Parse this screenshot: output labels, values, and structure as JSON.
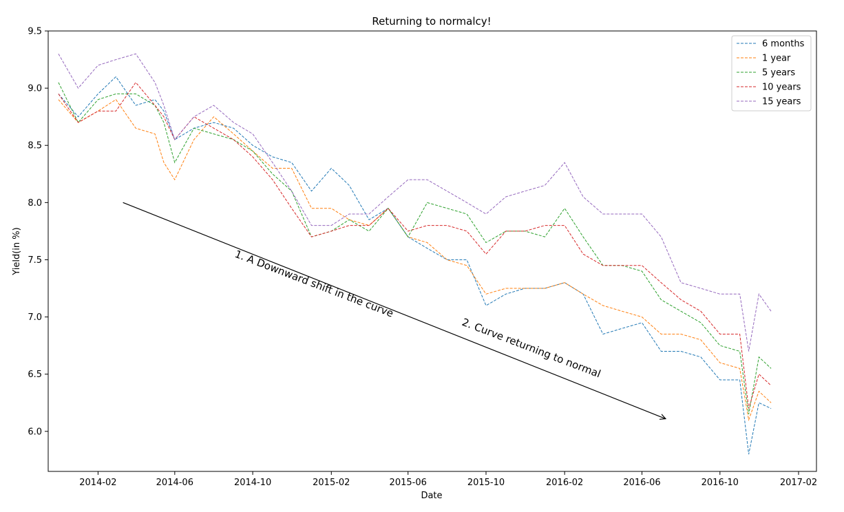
{
  "chart_data": {
    "type": "line",
    "title": "Returning to normalcy!",
    "xlabel": "Date",
    "ylabel": "Yield(in %)",
    "x_range": [
      "2013-11-15",
      "2017-03-01"
    ],
    "ylim": [
      5.65,
      9.5
    ],
    "x_ticks": [
      "2014-02",
      "2014-06",
      "2014-10",
      "2015-02",
      "2015-06",
      "2015-10",
      "2016-02",
      "2016-06",
      "2016-10",
      "2017-02"
    ],
    "y_ticks": [
      "6.0",
      "6.5",
      "7.0",
      "7.5",
      "8.0",
      "8.5",
      "9.0",
      "9.5"
    ],
    "grid": false,
    "legend_position": "top-right",
    "line_style": "dashed",
    "x": [
      "2013-12-01",
      "2014-01-01",
      "2014-02-01",
      "2014-03-01",
      "2014-04-01",
      "2014-05-01",
      "2014-05-15",
      "2014-06-01",
      "2014-07-01",
      "2014-08-01",
      "2014-09-01",
      "2014-10-01",
      "2014-11-01",
      "2014-12-01",
      "2015-01-01",
      "2015-02-01",
      "2015-03-01",
      "2015-04-01",
      "2015-05-01",
      "2015-06-01",
      "2015-07-01",
      "2015-08-01",
      "2015-09-01",
      "2015-10-01",
      "2015-11-01",
      "2015-12-01",
      "2016-01-01",
      "2016-02-01",
      "2016-03-01",
      "2016-04-01",
      "2016-05-01",
      "2016-06-01",
      "2016-07-01",
      "2016-08-01",
      "2016-09-01",
      "2016-10-01",
      "2016-11-01",
      "2016-11-15",
      "2016-12-01",
      "2016-12-20"
    ],
    "series": [
      {
        "name": "6 months",
        "color": "#1f77b4",
        "values": [
          8.95,
          8.75,
          8.95,
          9.1,
          8.85,
          8.9,
          8.8,
          8.55,
          8.65,
          8.7,
          8.65,
          8.5,
          8.4,
          8.35,
          8.1,
          8.3,
          8.15,
          7.85,
          7.95,
          7.7,
          7.6,
          7.5,
          7.5,
          7.1,
          7.2,
          7.25,
          7.25,
          7.3,
          7.2,
          6.85,
          6.9,
          6.95,
          6.7,
          6.7,
          6.65,
          6.45,
          6.45,
          5.8,
          6.25,
          6.2
        ]
      },
      {
        "name": "1 year",
        "color": "#ff7f0e",
        "values": [
          8.9,
          8.7,
          8.8,
          8.9,
          8.65,
          8.6,
          8.35,
          8.2,
          8.55,
          8.75,
          8.6,
          8.45,
          8.3,
          8.3,
          7.95,
          7.95,
          7.85,
          7.8,
          7.95,
          7.7,
          7.65,
          7.5,
          7.45,
          7.2,
          7.25,
          7.25,
          7.25,
          7.3,
          7.2,
          7.1,
          7.05,
          7.0,
          6.85,
          6.85,
          6.8,
          6.6,
          6.55,
          6.1,
          6.35,
          6.25
        ]
      },
      {
        "name": "5 years",
        "color": "#2ca02c",
        "values": [
          9.05,
          8.7,
          8.9,
          8.95,
          8.95,
          8.85,
          8.7,
          8.35,
          8.65,
          8.6,
          8.55,
          8.45,
          8.25,
          8.1,
          7.7,
          7.75,
          7.85,
          7.75,
          7.95,
          7.7,
          8.0,
          7.95,
          7.9,
          7.65,
          7.75,
          7.75,
          7.7,
          7.95,
          7.7,
          7.45,
          7.45,
          7.4,
          7.15,
          7.05,
          6.95,
          6.75,
          6.7,
          6.15,
          6.65,
          6.55
        ]
      },
      {
        "name": "10 years",
        "color": "#d62728",
        "values": [
          8.95,
          8.7,
          8.8,
          8.8,
          9.05,
          8.85,
          8.75,
          8.55,
          8.75,
          8.65,
          8.55,
          8.4,
          8.2,
          7.95,
          7.7,
          7.75,
          7.8,
          7.8,
          7.95,
          7.75,
          7.8,
          7.8,
          7.75,
          7.55,
          7.75,
          7.75,
          7.8,
          7.8,
          7.55,
          7.45,
          7.45,
          7.45,
          7.3,
          7.15,
          7.05,
          6.85,
          6.85,
          6.2,
          6.5,
          6.4
        ]
      },
      {
        "name": "15 years",
        "color": "#9467bd",
        "values": [
          9.3,
          9.0,
          9.2,
          9.25,
          9.3,
          9.05,
          8.85,
          8.55,
          8.75,
          8.85,
          8.7,
          8.6,
          8.35,
          8.1,
          7.8,
          7.8,
          7.9,
          7.9,
          8.05,
          8.2,
          8.2,
          8.1,
          8.0,
          7.9,
          8.05,
          8.1,
          8.15,
          8.35,
          8.05,
          7.9,
          7.9,
          7.9,
          7.7,
          7.3,
          7.25,
          7.2,
          7.2,
          6.7,
          7.2,
          7.05
        ]
      }
    ],
    "annotations": [
      {
        "text": "1. A Downward shift in the curve"
      },
      {
        "text": "2. Curve returning to normal"
      }
    ],
    "arrow": {
      "from": [
        "2014-03-12",
        8.0
      ],
      "to": [
        "2016-07-08",
        6.11
      ]
    }
  }
}
